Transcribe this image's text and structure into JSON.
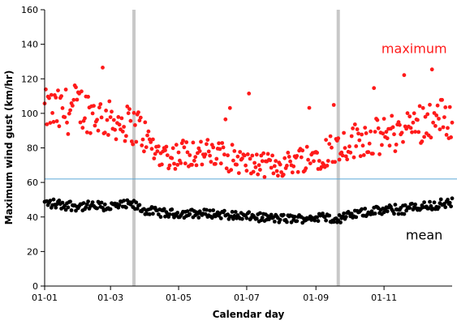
{
  "chart_data": {
    "type": "scatter",
    "xlabel": "Calendar day",
    "ylabel": "Maximum wind gust (km/hr)",
    "x_ticks": [
      "01-01",
      "01-03",
      "01-05",
      "01-07",
      "01-09",
      "01-11"
    ],
    "x_tick_days": [
      1,
      60,
      121,
      182,
      244,
      305
    ],
    "xlim": [
      1,
      366
    ],
    "ylim": [
      0,
      160
    ],
    "y_ticks": [
      "0",
      "20",
      "40",
      "60",
      "80",
      "100",
      "120",
      "140",
      "160"
    ],
    "grid": false,
    "vertical_bands": [
      {
        "day": 81,
        "color": "#c8c8c8"
      },
      {
        "day": 264,
        "color": "#c8c8c8"
      }
    ],
    "horizontal_line": {
      "y": 62,
      "color": "#5aa7d6"
    },
    "annotations": [
      {
        "text": "maximum",
        "color": "#ff1a1a",
        "day": 332,
        "y": 135
      },
      {
        "text": "mean",
        "color": "#000000",
        "day": 341,
        "y": 27
      }
    ],
    "series_style": [
      {
        "key": "maximum",
        "color": "#ff1a1a"
      },
      {
        "key": "mean",
        "color": "#000000"
      }
    ],
    "maximum_anchors": {
      "x": [
        1,
        15,
        30,
        45,
        60,
        75,
        85,
        100,
        115,
        130,
        150,
        170,
        185,
        200,
        215,
        230,
        245,
        260,
        270,
        285,
        300,
        320,
        335,
        350,
        366
      ],
      "y": [
        102,
        100,
        104,
        100,
        96,
        94,
        92,
        78,
        75,
        78,
        76,
        74,
        70,
        70,
        70,
        74,
        76,
        80,
        82,
        86,
        86,
        90,
        94,
        98,
        96
      ],
      "spread": [
        12,
        14,
        14,
        12,
        11,
        11,
        12,
        8,
        8,
        9,
        9,
        8,
        7,
        7,
        7,
        8,
        9,
        10,
        10,
        11,
        11,
        12,
        12,
        12,
        12
      ]
    },
    "mean_anchors": {
      "x": [
        1,
        20,
        40,
        60,
        80,
        90,
        110,
        130,
        150,
        170,
        190,
        210,
        230,
        250,
        265,
        275,
        290,
        310,
        330,
        350,
        366
      ],
      "y": [
        48,
        47,
        46,
        46,
        47,
        44,
        42,
        42,
        42,
        41,
        40,
        39,
        39,
        40,
        39,
        41,
        43,
        44,
        45,
        47,
        48
      ],
      "spread": [
        3,
        3,
        3,
        3,
        3,
        2.5,
        2.5,
        2.5,
        2.5,
        2.5,
        2.5,
        2.5,
        2.5,
        2.5,
        2.5,
        2.5,
        2.5,
        3,
        3,
        3,
        3
      ]
    }
  }
}
